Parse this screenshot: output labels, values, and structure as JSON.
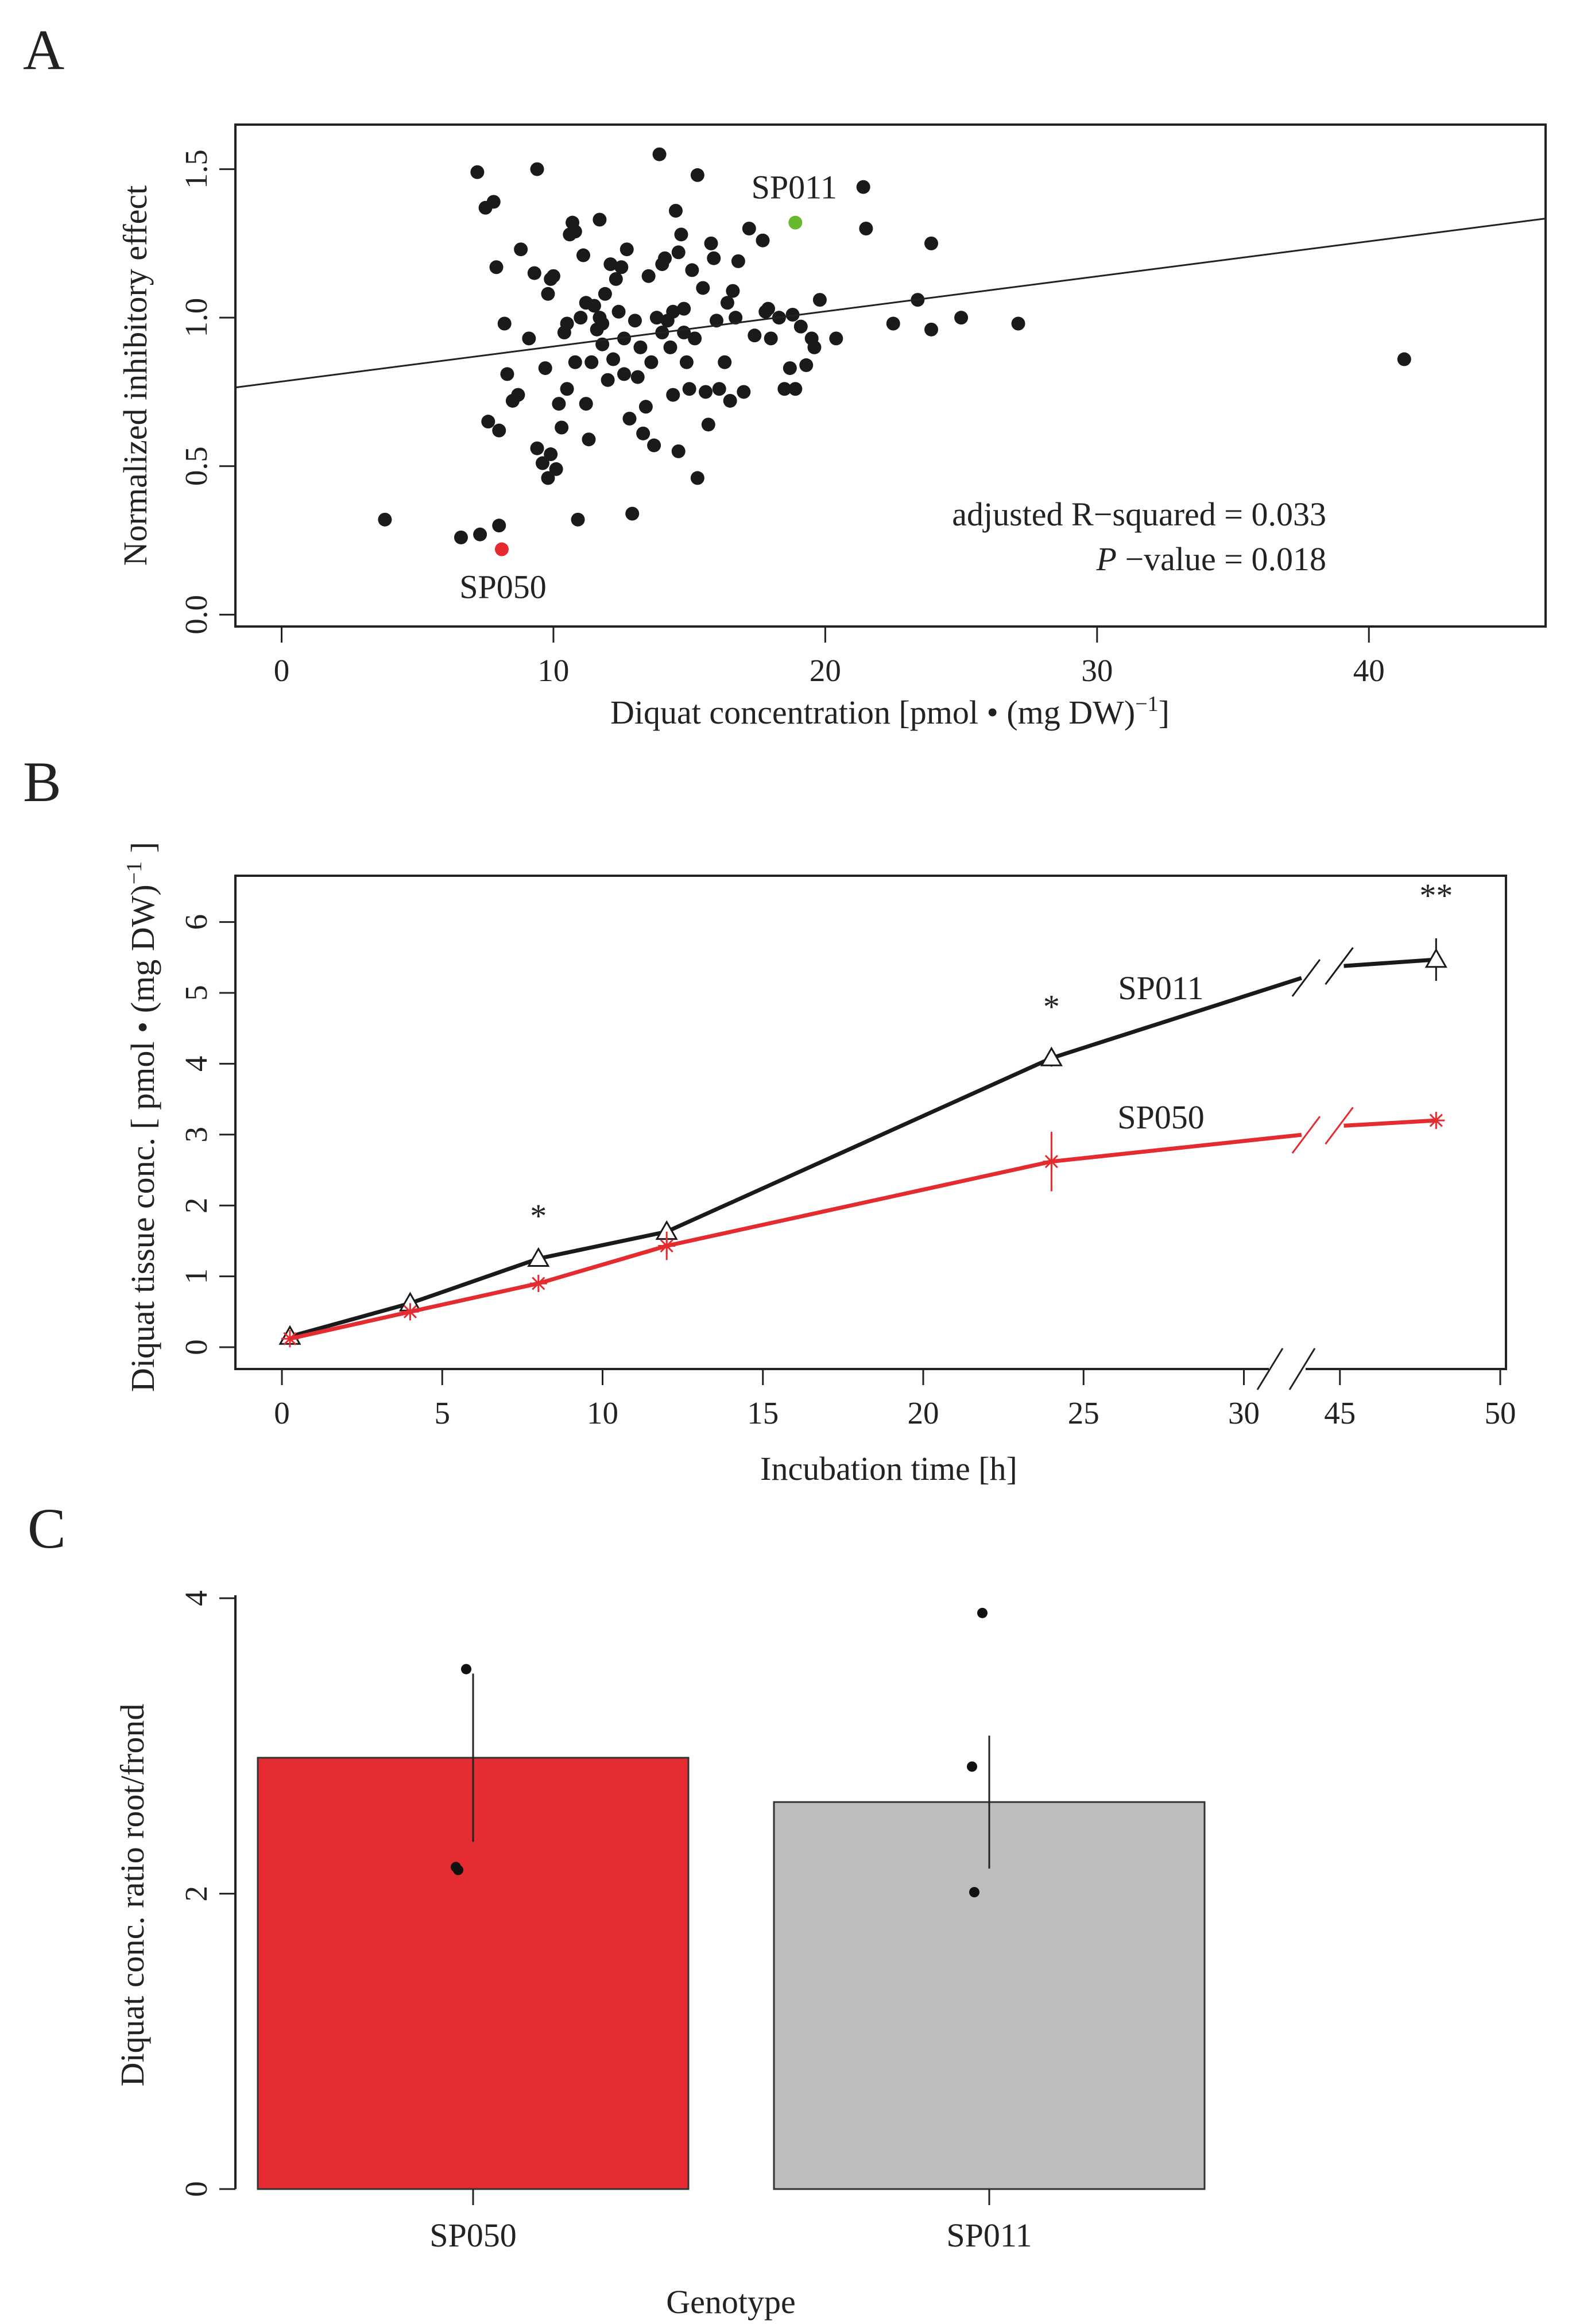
{
  "colors": {
    "red": "#e32b30",
    "green": "#66b92e",
    "black": "#1a1a1a",
    "gray": "#bdbdbd",
    "bar_red": "#e52c32"
  },
  "chart_data": [
    {
      "panel": "A",
      "type": "scatter",
      "xlabel": "Diquat concentration [pmol • (mg DW)",
      "xlabel_sup": "−1",
      "xlabel_end": "]",
      "ylabel": "Normalized inhibitory effect",
      "xlim": [
        -1.7,
        46.5
      ],
      "ylim": [
        -0.04,
        1.65
      ],
      "xticks": [
        "0",
        "10",
        "20",
        "30",
        "40"
      ],
      "yticks": [
        "0.0",
        "0.5",
        "1.0",
        "1.5"
      ],
      "regression": {
        "intercept": 0.785,
        "slope": 0.0118
      },
      "annotations": {
        "r2": "adjusted R−squared = 0.033",
        "p_italic": "P",
        "p_rest": " −value = 0.018"
      },
      "highlight": [
        {
          "label": "SP011",
          "x": 18.9,
          "y": 1.32,
          "color": "green"
        },
        {
          "label": "SP050",
          "x": 8.1,
          "y": 0.22,
          "color": "red"
        }
      ],
      "points": [
        [
          3.8,
          0.32
        ],
        [
          6.6,
          0.26
        ],
        [
          7.3,
          0.27
        ],
        [
          8.0,
          0.3
        ],
        [
          7.2,
          1.49
        ],
        [
          7.5,
          1.37
        ],
        [
          7.8,
          1.39
        ],
        [
          7.9,
          1.17
        ],
        [
          7.6,
          0.65
        ],
        [
          8.0,
          0.62
        ],
        [
          8.2,
          0.98
        ],
        [
          8.3,
          0.81
        ],
        [
          8.5,
          0.72
        ],
        [
          8.7,
          0.74
        ],
        [
          8.8,
          1.23
        ],
        [
          9.1,
          0.93
        ],
        [
          9.3,
          1.15
        ],
        [
          9.4,
          1.5
        ],
        [
          9.4,
          0.56
        ],
        [
          9.6,
          0.51
        ],
        [
          9.7,
          0.83
        ],
        [
          9.9,
          1.13
        ],
        [
          9.8,
          1.08
        ],
        [
          9.8,
          0.46
        ],
        [
          9.9,
          0.54
        ],
        [
          10.0,
          1.14
        ],
        [
          10.1,
          0.49
        ],
        [
          10.2,
          0.71
        ],
        [
          10.3,
          0.63
        ],
        [
          10.4,
          0.95
        ],
        [
          10.5,
          0.76
        ],
        [
          10.5,
          0.98
        ],
        [
          10.6,
          1.28
        ],
        [
          10.7,
          1.32
        ],
        [
          10.8,
          0.85
        ],
        [
          10.8,
          1.29
        ],
        [
          10.9,
          0.32
        ],
        [
          11.0,
          1.0
        ],
        [
          11.1,
          1.21
        ],
        [
          11.2,
          1.05
        ],
        [
          11.2,
          0.71
        ],
        [
          11.3,
          0.59
        ],
        [
          11.4,
          0.85
        ],
        [
          11.5,
          1.04
        ],
        [
          11.6,
          0.96
        ],
        [
          11.7,
          1.33
        ],
        [
          11.7,
          1.0
        ],
        [
          11.8,
          0.98
        ],
        [
          11.8,
          0.91
        ],
        [
          11.9,
          1.08
        ],
        [
          12.0,
          0.79
        ],
        [
          12.1,
          1.18
        ],
        [
          12.2,
          0.86
        ],
        [
          12.3,
          1.13
        ],
        [
          12.4,
          1.02
        ],
        [
          12.5,
          1.17
        ],
        [
          12.6,
          0.93
        ],
        [
          12.6,
          0.81
        ],
        [
          12.7,
          1.23
        ],
        [
          12.8,
          0.66
        ],
        [
          12.9,
          0.34
        ],
        [
          13.0,
          0.99
        ],
        [
          13.1,
          0.8
        ],
        [
          13.2,
          0.9
        ],
        [
          13.3,
          0.61
        ],
        [
          13.4,
          0.7
        ],
        [
          13.5,
          1.14
        ],
        [
          13.6,
          0.85
        ],
        [
          13.7,
          0.57
        ],
        [
          13.8,
          1.0
        ],
        [
          13.9,
          1.55
        ],
        [
          14.0,
          0.95
        ],
        [
          14.0,
          1.18
        ],
        [
          14.1,
          1.2
        ],
        [
          14.2,
          0.99
        ],
        [
          14.3,
          0.9
        ],
        [
          14.4,
          0.74
        ],
        [
          14.4,
          1.02
        ],
        [
          14.5,
          1.36
        ],
        [
          14.6,
          0.55
        ],
        [
          14.6,
          1.22
        ],
        [
          14.7,
          1.28
        ],
        [
          14.8,
          1.03
        ],
        [
          14.8,
          0.95
        ],
        [
          14.9,
          0.85
        ],
        [
          15.0,
          0.76
        ],
        [
          15.1,
          1.16
        ],
        [
          15.2,
          0.93
        ],
        [
          15.3,
          1.48
        ],
        [
          15.3,
          0.46
        ],
        [
          15.5,
          1.1
        ],
        [
          15.6,
          0.75
        ],
        [
          15.7,
          0.64
        ],
        [
          15.8,
          1.25
        ],
        [
          15.9,
          1.2
        ],
        [
          16.0,
          0.99
        ],
        [
          16.1,
          0.76
        ],
        [
          16.3,
          0.85
        ],
        [
          16.4,
          1.05
        ],
        [
          16.5,
          0.72
        ],
        [
          16.6,
          1.09
        ],
        [
          16.7,
          1.0
        ],
        [
          16.8,
          1.19
        ],
        [
          17.0,
          0.75
        ],
        [
          17.2,
          1.3
        ],
        [
          17.4,
          0.94
        ],
        [
          17.7,
          1.26
        ],
        [
          17.8,
          1.02
        ],
        [
          17.9,
          1.03
        ],
        [
          18.0,
          0.93
        ],
        [
          18.3,
          1.0
        ],
        [
          18.5,
          0.76
        ],
        [
          18.7,
          0.83
        ],
        [
          18.8,
          1.01
        ],
        [
          18.9,
          0.76
        ],
        [
          19.1,
          0.97
        ],
        [
          19.3,
          0.84
        ],
        [
          19.5,
          0.93
        ],
        [
          19.6,
          0.9
        ],
        [
          19.8,
          1.06
        ],
        [
          20.4,
          0.93
        ],
        [
          21.4,
          1.44
        ],
        [
          21.5,
          1.3
        ],
        [
          22.5,
          0.98
        ],
        [
          23.4,
          1.06
        ],
        [
          23.9,
          1.25
        ],
        [
          23.9,
          0.96
        ],
        [
          25.0,
          1.0
        ],
        [
          27.1,
          0.98
        ],
        [
          41.3,
          0.86
        ]
      ]
    },
    {
      "panel": "B",
      "type": "line",
      "xlabel": "Incubation time [h]",
      "ylabel": "Diquat tissue conc. [ pmol • (mg DW)",
      "ylabel_sup": "−1",
      "ylabel_end": " ]",
      "xticks": [
        "0",
        "5",
        "10",
        "15",
        "20",
        "25",
        "30",
        "45",
        "50"
      ],
      "yticks": [
        "0",
        "1",
        "2",
        "3",
        "4",
        "5",
        "6"
      ],
      "axis_break": "30–45",
      "series": [
        {
          "name": "SP011",
          "color": "black",
          "marker": "triangle",
          "x": [
            0.25,
            4,
            8,
            12,
            24,
            48
          ],
          "y": [
            0.15,
            0.62,
            1.25,
            1.63,
            4.08,
            5.47
          ],
          "err": [
            0,
            0,
            0,
            0,
            0.12,
            0.3
          ]
        },
        {
          "name": "SP050",
          "color": "red",
          "marker": "asterisk",
          "x": [
            0.25,
            4,
            8,
            12,
            24,
            48
          ],
          "y": [
            0.12,
            0.5,
            0.9,
            1.43,
            2.62,
            3.2
          ],
          "err": [
            0,
            0,
            0,
            0.2,
            0.42,
            0
          ]
        }
      ],
      "significance": [
        {
          "x": 8,
          "label": "*"
        },
        {
          "x": 24,
          "label": "*"
        },
        {
          "x": 48,
          "label": "**"
        }
      ]
    },
    {
      "panel": "C",
      "type": "bar",
      "xlabel": "Genotype",
      "ylabel": "Diquat conc. ratio root/frond",
      "ylim": [
        0,
        4.02
      ],
      "yticks": [
        "0",
        "2",
        "4"
      ],
      "categories": [
        "SP050",
        "SP011"
      ],
      "values": [
        2.92,
        2.62
      ],
      "bar_colors": [
        "bar_red",
        "gray"
      ],
      "errors": [
        0.57,
        0.45
      ],
      "points": [
        [
          3.52,
          2.18,
          2.16
        ],
        [
          3.9,
          2.86,
          2.01
        ]
      ]
    }
  ]
}
